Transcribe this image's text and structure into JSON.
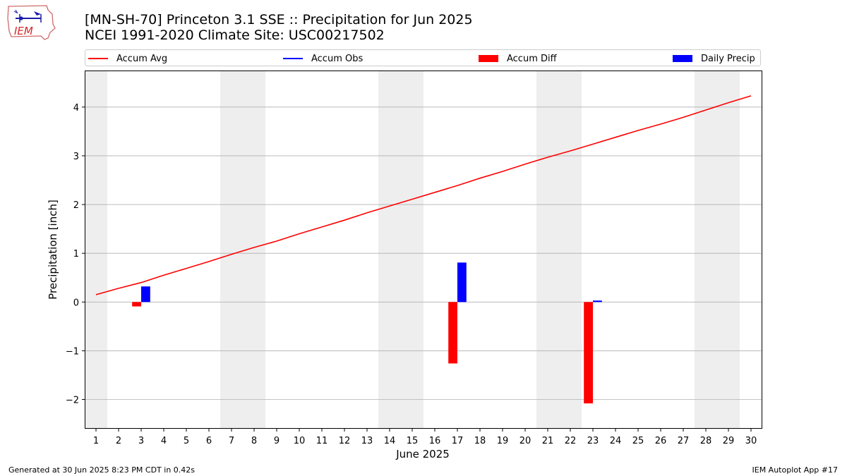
{
  "header": {
    "title_line1": "[MN-SH-70] Princeton 3.1 SSE :: Precipitation for Jun 2025",
    "title_line2": "NCEI 1991-2020 Climate Site: USC00217502"
  },
  "logo": {
    "text": "IEM"
  },
  "footer": {
    "generated": "Generated at 30 Jun 2025 8:23 PM CDT in 0.42s",
    "app": "IEM Autoplot App #17"
  },
  "legend": {
    "items": [
      {
        "label": "Accum Avg",
        "kind": "line",
        "color": "#ff0000"
      },
      {
        "label": "Accum Obs",
        "kind": "line",
        "color": "#0000ff"
      },
      {
        "label": "Accum Diff",
        "kind": "patch",
        "color": "#ff0000"
      },
      {
        "label": "Daily Precip",
        "kind": "patch",
        "color": "#0000ff"
      }
    ]
  },
  "chart_data": {
    "type": "bar",
    "xlabel": "June 2025",
    "ylabel": "Precipitation [inch]",
    "xlim": [
      0.5,
      30.5
    ],
    "ylim": [
      -2.6,
      4.75
    ],
    "yticks": [
      -2,
      -1,
      0,
      1,
      2,
      3,
      4
    ],
    "ytick_labels": [
      "−2",
      "−1",
      "0",
      "1",
      "2",
      "3",
      "4"
    ],
    "days": [
      1,
      2,
      3,
      4,
      5,
      6,
      7,
      8,
      9,
      10,
      11,
      12,
      13,
      14,
      15,
      16,
      17,
      18,
      19,
      20,
      21,
      22,
      23,
      24,
      25,
      26,
      27,
      28,
      29,
      30
    ],
    "weekend_days": [
      1,
      7,
      8,
      14,
      15,
      21,
      22,
      28,
      29
    ],
    "grid": "horizontal",
    "colors": {
      "avg": "#ff0000",
      "obs": "#0000ff",
      "diff": "#ff0000",
      "daily": "#0000ff",
      "weekend": "#eeeeee",
      "grid": "#b0b0b0"
    },
    "series": [
      {
        "name": "Accum Avg",
        "kind": "line",
        "x": [
          1,
          2,
          3,
          4,
          5,
          6,
          7,
          8,
          9,
          10,
          11,
          12,
          13,
          14,
          15,
          16,
          17,
          18,
          19,
          20,
          21,
          22,
          23,
          24,
          25,
          26,
          27,
          28,
          29,
          30
        ],
        "values": [
          0.15,
          0.28,
          0.4,
          0.55,
          0.69,
          0.83,
          0.98,
          1.12,
          1.25,
          1.4,
          1.54,
          1.68,
          1.83,
          1.97,
          2.11,
          2.25,
          2.39,
          2.54,
          2.68,
          2.83,
          2.97,
          3.1,
          3.24,
          3.38,
          3.52,
          3.65,
          3.79,
          3.94,
          4.09,
          4.23
        ]
      },
      {
        "name": "Accum Diff",
        "kind": "bar",
        "x": [
          3,
          17,
          23
        ],
        "values": [
          -0.09,
          -1.26,
          -2.08
        ]
      },
      {
        "name": "Daily Precip",
        "kind": "bar",
        "x": [
          3,
          17,
          23
        ],
        "values": [
          0.32,
          0.81,
          0.03
        ]
      }
    ]
  }
}
